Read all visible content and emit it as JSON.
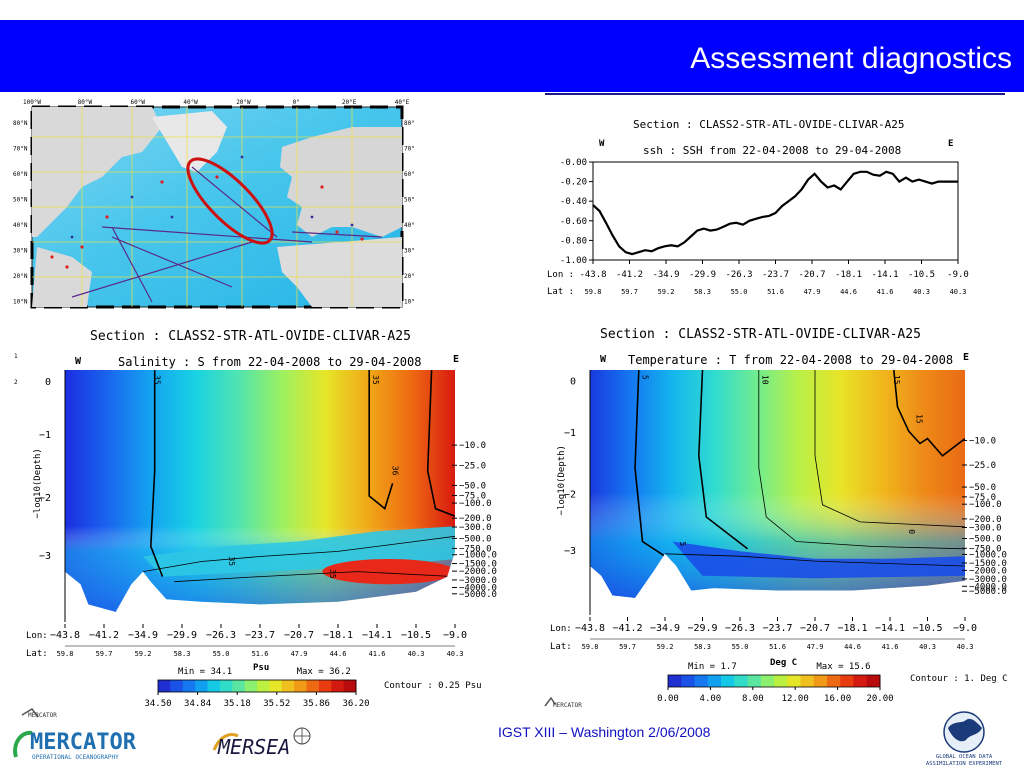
{
  "slide": {
    "title": "Assessment diagnostics",
    "footer": "IGST XIII – Washington  2/06/2008"
  },
  "map": {
    "lon_labels": [
      "100°W",
      "80°W",
      "60°W",
      "40°W",
      "20°W",
      "0°",
      "20°E",
      "40°E"
    ],
    "lat_labels": [
      "80°N",
      "70°N",
      "60°N",
      "50°N",
      "40°N",
      "30°N",
      "20°N",
      "10°N"
    ],
    "highlight_color": "#cc1111"
  },
  "chart_data": [
    {
      "type": "line",
      "title": "Section :  CLASS2-STR-ATL-OVIDE-CLIVAR-A25",
      "subtitle": "ssh : SSH from 22-04-2008 to 29-04-2008",
      "left_label": "W",
      "right_label": "E",
      "ylim": [
        -1.0,
        0.0
      ],
      "yticks": [
        "-0.00",
        "-0.20",
        "-0.40",
        "-0.60",
        "-0.80",
        "-1.00"
      ],
      "lon_row_label": "Lon :",
      "lat_row_label": "Lat :",
      "lon_ticks": [
        "-43.8",
        "-41.2",
        "-34.9",
        "-29.9",
        "-26.3",
        "-23.7",
        "-20.7",
        "-18.1",
        "-14.1",
        "-10.5",
        "-9.0"
      ],
      "lat_ticks": [
        "59.8",
        "59.7",
        "59.2",
        "58.3",
        "55.0",
        "51.6",
        "47.9",
        "44.6",
        "41.6",
        "40.3",
        "40.3"
      ],
      "series": [
        {
          "values": [
            -0.44,
            -0.5,
            -0.62,
            -0.75,
            -0.86,
            -0.92,
            -0.94,
            -0.92,
            -0.9,
            -0.91,
            -0.88,
            -0.86,
            -0.85,
            -0.86,
            -0.82,
            -0.76,
            -0.7,
            -0.68,
            -0.7,
            -0.69,
            -0.66,
            -0.63,
            -0.62,
            -0.64,
            -0.6,
            -0.58,
            -0.56,
            -0.55,
            -0.52,
            -0.45,
            -0.4,
            -0.35,
            -0.28,
            -0.18,
            -0.12,
            -0.2,
            -0.26,
            -0.24,
            -0.28,
            -0.2,
            -0.12,
            -0.1,
            -0.1,
            -0.13,
            -0.14,
            -0.1,
            -0.12,
            -0.2,
            -0.16,
            -0.2,
            -0.18,
            -0.2,
            -0.22,
            -0.2,
            -0.2,
            -0.2,
            -0.2
          ]
        }
      ]
    },
    {
      "type": "heatmap",
      "title": "Section :  CLASS2-STR-ATL-OVIDE-CLIVAR-A25",
      "subtitle": "Salinity : S from 22-04-2008 to 29-04-2008",
      "left_label": "W",
      "right_label": "E",
      "ylabel": "−log10(Depth)",
      "yticks": [
        "0",
        "−1",
        "−2",
        "−3"
      ],
      "depth_labels": [
        "−10.0",
        "−25.0",
        "−50.0",
        "−75.0",
        "−100.0",
        "−200.0",
        "−300.0",
        "−500.0",
        "−750.0",
        "−1000.0",
        "−1500.0",
        "−2000.0",
        "−3000.0",
        "−4000.0",
        "−5000.0"
      ],
      "lon_row_label": "Lon:",
      "lat_row_label": "Lat:",
      "lon_ticks": [
        "−43.8",
        "−41.2",
        "−34.9",
        "−29.9",
        "−26.3",
        "−23.7",
        "−20.7",
        "−18.1",
        "−14.1",
        "−10.5",
        "−9.0"
      ],
      "lat_ticks": [
        "59.8",
        "59.7",
        "59.2",
        "58.3",
        "55.0",
        "51.6",
        "47.9",
        "44.6",
        "41.6",
        "40.3",
        "40.3"
      ],
      "contour_labels": [
        "35",
        "35",
        "35",
        "35",
        "36"
      ],
      "colorbar": {
        "min_label": "Min = 34.1",
        "max_label": "Max = 36.2",
        "unit": "Psu",
        "ticks": [
          "34.50",
          "34.84",
          "35.18",
          "35.52",
          "35.86",
          "36.20"
        ],
        "contour": "Contour :  0.25  Psu"
      },
      "side_marks": [
        "1",
        "2"
      ]
    },
    {
      "type": "heatmap",
      "title": "Section :  CLASS2-STR-ATL-OVIDE-CLIVAR-A25",
      "subtitle": "Temperature : T from 22-04-2008 to 29-04-2008",
      "left_label": "W",
      "right_label": "E",
      "ylabel": "−log10(Depth)",
      "yticks": [
        "0",
        "−1",
        "−2",
        "−3"
      ],
      "depth_labels": [
        "−10.0",
        "−25.0",
        "−50.0",
        "−75.0",
        "−100.0",
        "−200.0",
        "−300.0",
        "−500.0",
        "−750.0",
        "−1000.0",
        "−1500.0",
        "−2000.0",
        "−3000.0",
        "−4000.0",
        "−5000.0"
      ],
      "lon_row_label": "Lon:",
      "lat_row_label": "Lat:",
      "lon_ticks": [
        "−43.8",
        "−41.2",
        "−34.9",
        "−29.9",
        "−26.3",
        "−23.7",
        "−20.7",
        "−18.1",
        "−14.1",
        "−10.5",
        "−9.0"
      ],
      "lat_ticks": [
        "59.8",
        "59.7",
        "59.2",
        "58.3",
        "55.0",
        "51.6",
        "47.9",
        "44.6",
        "41.6",
        "40.3",
        "40.3"
      ],
      "contour_labels": [
        "5",
        "10",
        "15",
        "15",
        "5",
        "0"
      ],
      "colorbar": {
        "min_label": "Min =  1.7",
        "max_label": "Max = 15.6",
        "unit": "Deg C",
        "ticks": [
          "0.00",
          "4.00",
          "8.00",
          "12.00",
          "16.00",
          "20.00"
        ],
        "contour": "Contour : 1. Deg C"
      }
    }
  ],
  "logos": {
    "mercator": "MERCATOR",
    "mercator_sub": "OPERATIONAL OCEANOGRAPHY",
    "mersea": "MERSEA",
    "godae_line1": "GLOBAL OCEAN DATA",
    "godae_line2": "ASSIMILATION EXPERIMENT",
    "small_mercator": "MERCATOR"
  }
}
